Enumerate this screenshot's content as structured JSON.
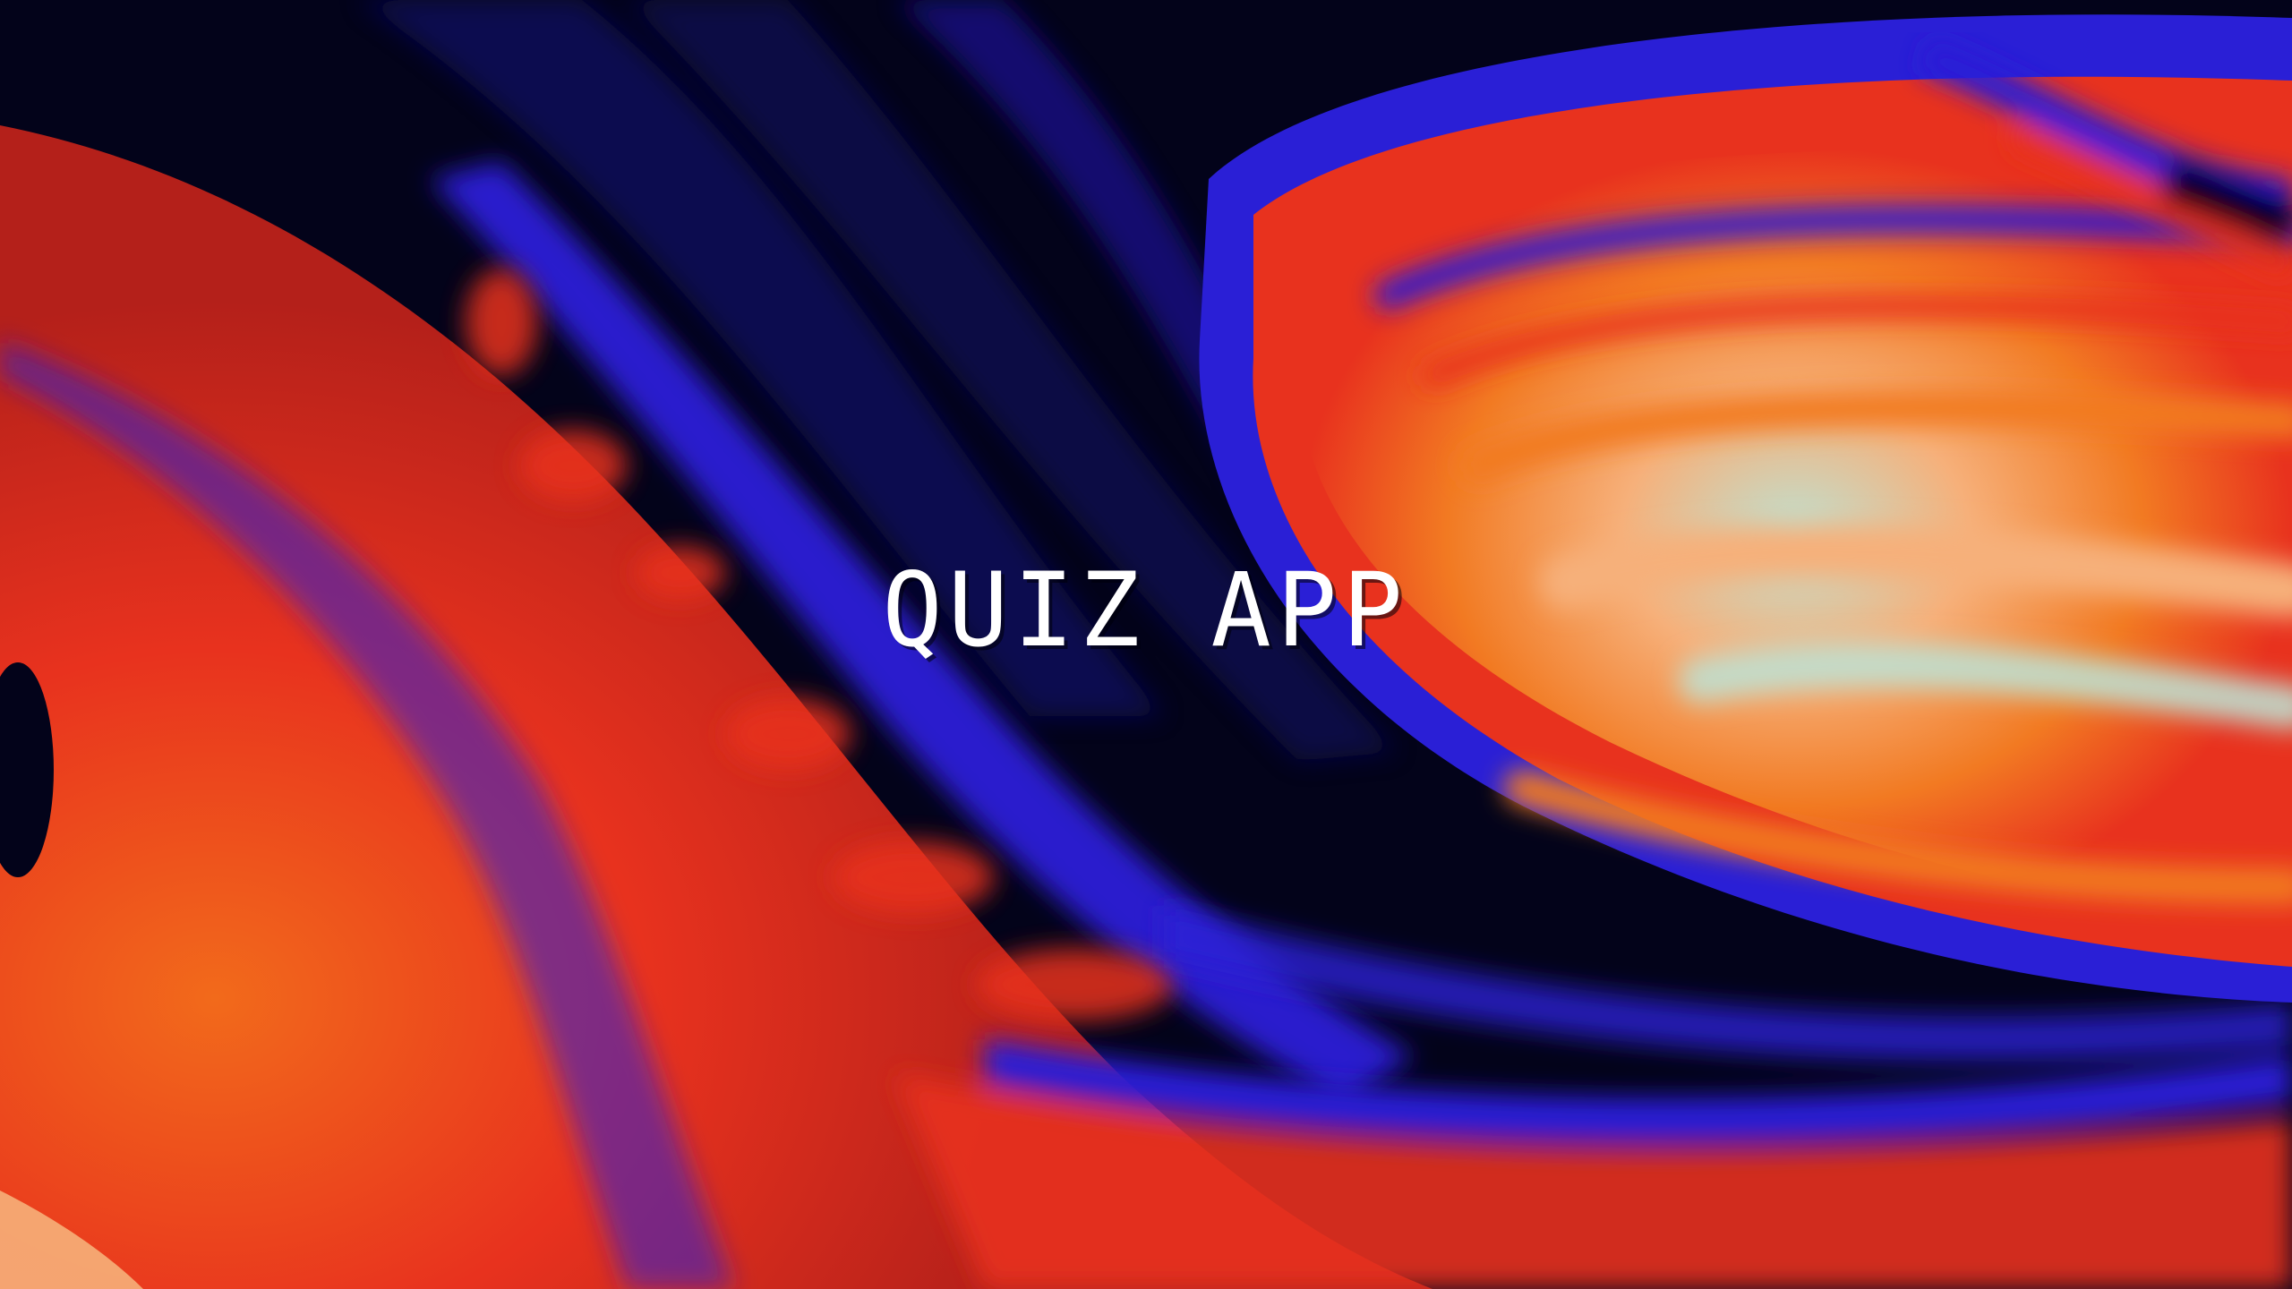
{
  "app": {
    "title": "QUIZ APP"
  },
  "background": {
    "description_icon": "abstract-fluid-art",
    "colors": {
      "deep_navy": "#03031a",
      "blue": "#2a1fd6",
      "red": "#e8321e",
      "orange": "#f26a1b",
      "pale_orange": "#f6b07a",
      "mint": "#a8d8c8"
    }
  },
  "title_color": "#ffffff"
}
